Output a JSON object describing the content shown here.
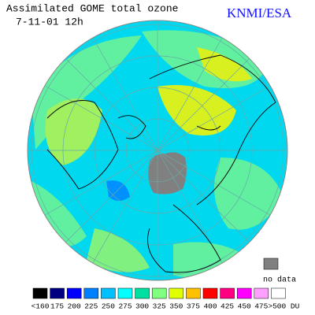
{
  "header": {
    "title": "Assimilated GOME total ozone",
    "date": "7-11-01 12h",
    "agency": "KNMI/ESA"
  },
  "no_data": {
    "label": "no data",
    "color": "#808080"
  },
  "legend": {
    "items": [
      {
        "label": "<160",
        "color": "#000000"
      },
      {
        "label": "175",
        "color": "#000080"
      },
      {
        "label": "200",
        "color": "#0000ff"
      },
      {
        "label": "225",
        "color": "#0080ff"
      },
      {
        "label": "250",
        "color": "#00c0ff"
      },
      {
        "label": "275",
        "color": "#00ffff"
      },
      {
        "label": "300",
        "color": "#00e0a0"
      },
      {
        "label": "325",
        "color": "#80ff80"
      },
      {
        "label": "350",
        "color": "#e0ff00"
      },
      {
        "label": "375",
        "color": "#ffc000"
      },
      {
        "label": "400",
        "color": "#ff0000"
      },
      {
        "label": "425",
        "color": "#ff0080"
      },
      {
        "label": "450",
        "color": "#ff00ff"
      },
      {
        "label": "475",
        "color": "#ffa0ff"
      },
      {
        "label": ">500 DU",
        "color": "#ffffff"
      }
    ]
  }
}
